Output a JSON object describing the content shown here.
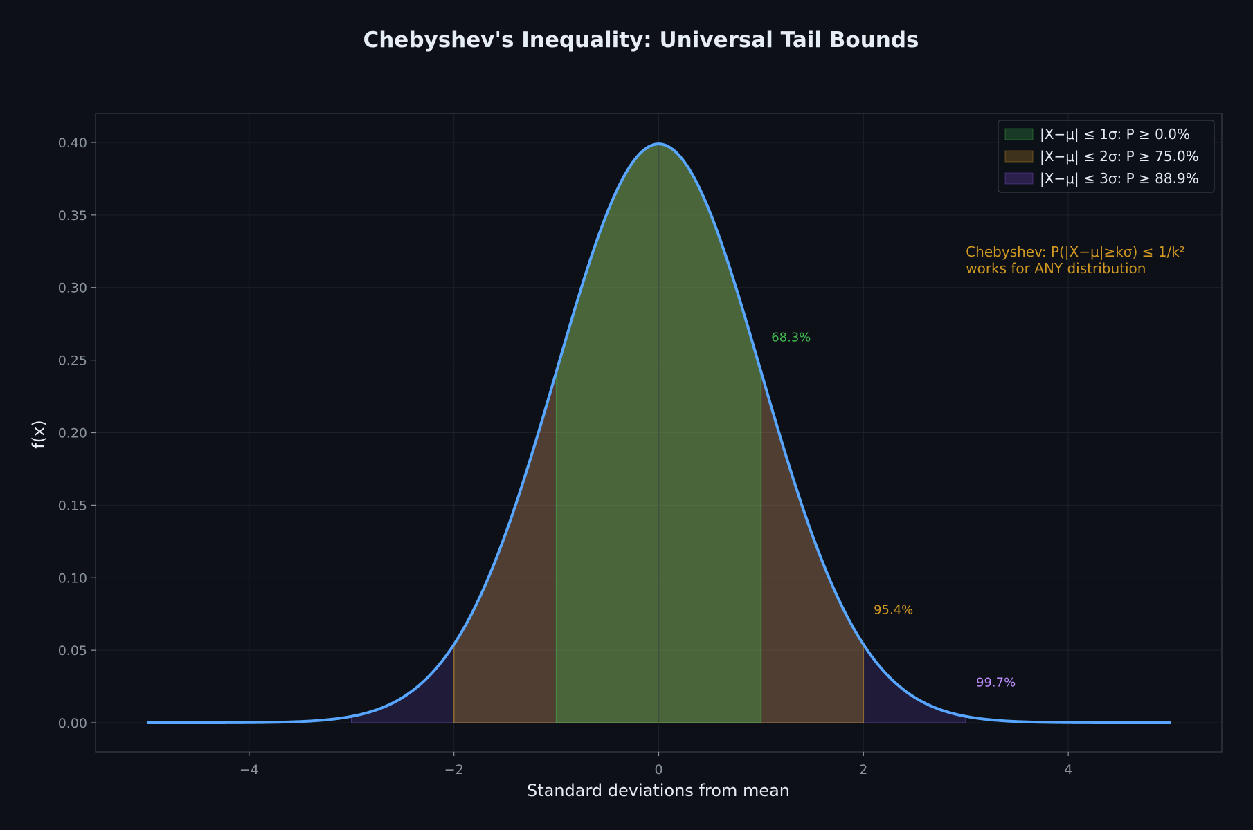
{
  "chart_data": {
    "type": "area",
    "title": "Chebyshev's Inequality: Universal Tail Bounds",
    "xlabel": "Standard deviations from mean",
    "ylabel": "f(x)",
    "xlim": [
      -5.5,
      5.5
    ],
    "ylim": [
      -0.02,
      0.42
    ],
    "x_ticks": [
      -4,
      -2,
      0,
      2,
      4
    ],
    "x_tick_labels": [
      "−4",
      "−2",
      "0",
      "2",
      "4"
    ],
    "y_ticks": [
      0.0,
      0.05,
      0.1,
      0.15,
      0.2,
      0.25,
      0.3,
      0.35,
      0.4
    ],
    "y_tick_labels": [
      "0.00",
      "0.05",
      "0.10",
      "0.15",
      "0.20",
      "0.25",
      "0.30",
      "0.35",
      "0.40"
    ],
    "grid": true,
    "curve": {
      "distribution": "standard normal",
      "x_range": [
        -5,
        5
      ],
      "color": "#58a6ff"
    },
    "bands": [
      {
        "label": "|X−μ| ≤ 1σ: P ≥ 0.0%",
        "k": 1,
        "color": "#3fb950"
      },
      {
        "label": "|X−μ| ≤ 2σ: P ≥ 75.0%",
        "k": 2,
        "color": "#d29922"
      },
      {
        "label": "|X−μ| ≤ 3σ: P ≥ 88.9%",
        "k": 3,
        "color": "#8250df"
      }
    ],
    "legend_position": "top-right",
    "annotations": [
      {
        "text": "68.3%",
        "x": 1.1,
        "y": 0.263,
        "color": "#3fb950"
      },
      {
        "text": "95.4%",
        "x": 2.1,
        "y": 0.075,
        "color": "#d29922"
      },
      {
        "text": "99.7%",
        "x": 3.1,
        "y": 0.025,
        "color": "#bc8cff"
      }
    ],
    "note": {
      "lines": [
        "Chebyshev: P(|X−μ|≥kσ) ≤ 1/k²",
        "works for ANY distribution"
      ],
      "x": 3.0,
      "y": 0.31,
      "color": "#d29922"
    }
  }
}
